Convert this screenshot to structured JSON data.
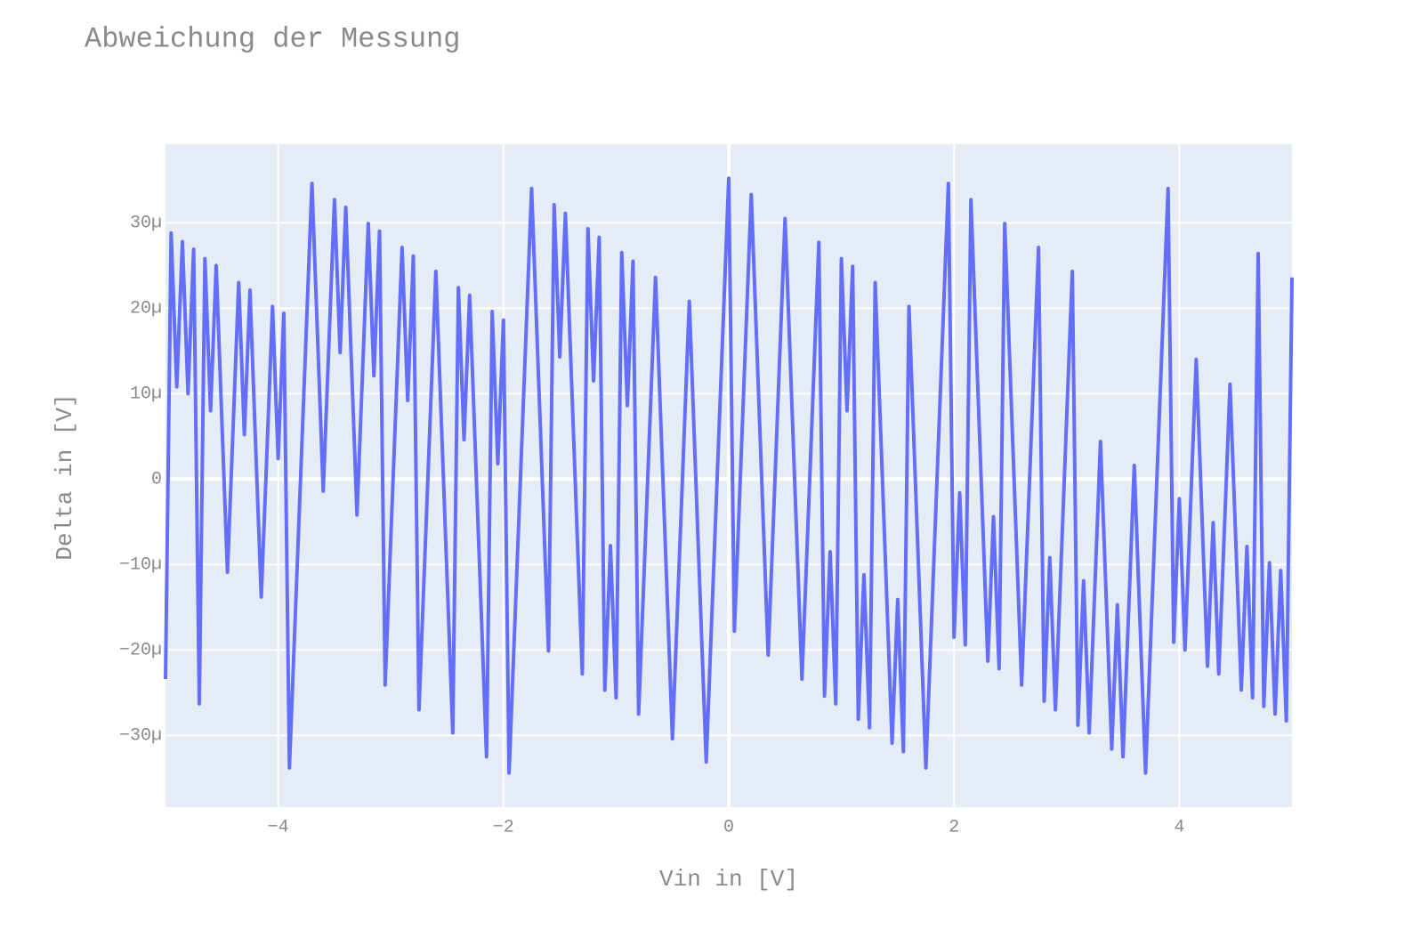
{
  "chart_data": {
    "type": "line",
    "title": "Abweichung der Messung",
    "xlabel": "Vin in [V]",
    "ylabel": "Delta in [V]",
    "x": [
      -5,
      -4.95,
      -4.9,
      -4.85,
      -4.8,
      -4.75,
      -4.7,
      -4.65,
      -4.6,
      -4.55,
      -4.5,
      -4.45,
      -4.4,
      -4.35,
      -4.3,
      -4.25,
      -4.2,
      -4.15,
      -4.1,
      -4.05,
      -4,
      -3.95,
      -3.9,
      -3.85,
      -3.8,
      -3.75,
      -3.7,
      -3.65,
      -3.6,
      -3.55,
      -3.5,
      -3.45,
      -3.4,
      -3.35,
      -3.3,
      -3.25,
      -3.2,
      -3.15,
      -3.1,
      -3.05,
      -3,
      -2.95,
      -2.9,
      -2.85,
      -2.8,
      -2.75,
      -2.7,
      -2.65,
      -2.6,
      -2.55,
      -2.5,
      -2.45,
      -2.4,
      -2.35,
      -2.3,
      -2.25,
      -2.2,
      -2.15,
      -2.1,
      -2.05,
      -2,
      -1.95,
      -1.9,
      -1.85,
      -1.8,
      -1.75,
      -1.7,
      -1.65,
      -1.6,
      -1.55,
      -1.5,
      -1.45,
      -1.4,
      -1.35,
      -1.3,
      -1.25,
      -1.2,
      -1.15,
      -1.1,
      -1.05,
      -1,
      -0.95,
      -0.9,
      -0.85,
      -0.8,
      -0.75,
      -0.7,
      -0.65,
      -0.6,
      -0.55,
      -0.5,
      -0.45,
      -0.4,
      -0.35,
      -0.3,
      -0.25,
      -0.2,
      -0.15,
      -0.1,
      -0.05,
      0,
      0.05,
      0.1,
      0.15,
      0.2,
      0.25,
      0.3,
      0.35,
      0.4,
      0.45,
      0.5,
      0.55,
      0.6,
      0.65,
      0.7,
      0.75,
      0.8,
      0.85,
      0.9,
      0.95,
      1,
      1.05,
      1.1,
      1.15,
      1.2,
      1.25,
      1.3,
      1.35,
      1.4,
      1.45,
      1.5,
      1.55,
      1.6,
      1.65,
      1.7,
      1.75,
      1.8,
      1.85,
      1.9,
      1.95,
      2,
      2.05,
      2.1,
      2.15,
      2.2,
      2.25,
      2.3,
      2.35,
      2.4,
      2.45,
      2.5,
      2.55,
      2.6,
      2.65,
      2.7,
      2.75,
      2.8,
      2.85,
      2.9,
      2.95,
      3,
      3.05,
      3.1,
      3.15,
      3.2,
      3.25,
      3.3,
      3.35,
      3.4,
      3.45,
      3.5,
      3.55,
      3.6,
      3.65,
      3.7,
      3.75,
      3.8,
      3.85,
      3.9,
      3.95,
      4,
      4.05,
      4.1,
      4.15,
      4.2,
      4.25,
      4.3,
      4.35,
      4.4,
      4.45,
      4.5,
      4.55,
      4.6,
      4.65,
      4.7,
      4.75,
      4.8,
      4.85,
      4.9,
      4.95,
      5
    ],
    "series": [
      {
        "color": "#636efa",
        "values": [
          -2.34e-05,
          2.88e-05,
          1.08e-05,
          2.78e-05,
          1e-05,
          2.69e-05,
          -2.63e-05,
          2.58e-05,
          8e-06,
          2.5e-05,
          7e-06,
          -1.09e-05,
          6e-06,
          2.3e-05,
          5.2e-06,
          2.21e-05,
          4e-06,
          -1.38e-05,
          3e-06,
          2.02e-05,
          2.4e-06,
          1.94e-05,
          -3.38e-05,
          -1.67e-05,
          4e-07,
          1.75e-05,
          3.46e-05,
          1.66e-05,
          -1.4e-06,
          1.56e-05,
          3.27e-05,
          1.48e-05,
          3.18e-05,
          1.38e-05,
          -4.2e-06,
          1.28e-05,
          2.99e-05,
          1.21e-05,
          2.9e-05,
          -2.41e-05,
          -6.9e-06,
          1.01e-05,
          2.71e-05,
          9.2e-06,
          2.61e-05,
          -2.7e-05,
          -9.9e-06,
          7.2e-06,
          2.43e-05,
          6.3e-06,
          -1.17e-05,
          -2.97e-05,
          2.24e-05,
          4.6e-06,
          2.15e-05,
          3.5e-06,
          -1.45e-05,
          -3.25e-05,
          1.96e-05,
          1.8e-06,
          1.86e-05,
          -3.44e-05,
          -1.73e-05,
          -2e-07,
          1.69e-05,
          3.4e-05,
          1.6e-05,
          -2e-06,
          -2.01e-05,
          3.21e-05,
          1.43e-05,
          3.11e-05,
          1.31e-05,
          -4.8e-06,
          -2.28e-05,
          2.93e-05,
          1.15e-05,
          2.83e-05,
          -2.47e-05,
          -7.8e-06,
          -2.56e-05,
          2.65e-05,
          8.6e-06,
          2.55e-05,
          -2.75e-05,
          -1.05e-05,
          6.6e-06,
          2.36e-05,
          5.6e-06,
          -1.24e-05,
          -3.04e-05,
          -1.33e-05,
          3.8e-06,
          2.08e-05,
          2.8e-06,
          -1.52e-05,
          -3.31e-05,
          -1.6e-05,
          1.1e-06,
          1.81e-05,
          3.52e-05,
          -1.78e-05,
          -8e-07,
          1.63e-05,
          3.33e-05,
          1.53e-05,
          -2.7e-06,
          -2.06e-05,
          -3.6e-06,
          1.35e-05,
          3.05e-05,
          1.25e-05,
          -5.5e-06,
          -2.34e-05,
          -6.4e-06,
          1.06e-05,
          2.77e-05,
          -2.54e-05,
          -8.5e-06,
          -2.63e-05,
          2.58e-05,
          8e-06,
          2.49e-05,
          -2.81e-05,
          -1.12e-05,
          -2.91e-05,
          2.3e-05,
          5.1e-06,
          -1.29e-05,
          -3.09e-05,
          -1.41e-05,
          -3.19e-05,
          2.02e-05,
          2.2e-06,
          -1.58e-05,
          -3.38e-05,
          -1.67e-05,
          4e-07,
          1.75e-05,
          3.46e-05,
          -1.85e-05,
          -1.6e-06,
          -1.94e-05,
          3.27e-05,
          1.47e-05,
          -3.3e-06,
          -2.13e-05,
          -4.4e-06,
          -2.22e-05,
          2.99e-05,
          1.19e-05,
          -6.1e-06,
          -2.41e-05,
          -7.1e-06,
          1e-05,
          2.71e-05,
          -2.6e-05,
          -9.2e-06,
          -2.7e-05,
          -9.9e-06,
          7.2e-06,
          2.43e-05,
          -2.88e-05,
          -1.19e-05,
          -2.97e-05,
          -1.27e-05,
          4.4e-06,
          -1.36e-05,
          -3.16e-05,
          -1.47e-05,
          -3.25e-05,
          -1.55e-05,
          1.6e-06,
          -1.64e-05,
          -3.44e-05,
          -1.73e-05,
          -2e-07,
          1.69e-05,
          3.4e-05,
          -1.91e-05,
          -2.3e-06,
          -2e-05,
          -3e-06,
          1.4e-05,
          -4e-06,
          -2.19e-05,
          -5.1e-06,
          -2.28e-05,
          -5.9e-06,
          1.11e-05,
          -6.8e-06,
          -2.47e-05,
          -7.9e-06,
          -2.56e-05,
          2.64e-05,
          -2.66e-05,
          -9.8e-06,
          -2.75e-05,
          -1.07e-05,
          -2.83e-05,
          2.36e-05
        ]
      }
    ],
    "xlim": [
      -5,
      5
    ],
    "xticks": [
      {
        "value": -4,
        "label": "−4"
      },
      {
        "value": -2,
        "label": "−2"
      },
      0,
      2,
      4
    ],
    "ylim": [
      -3.84e-05,
      3.92e-05
    ],
    "yticks": [
      {
        "value": -3e-05,
        "label": "−30µ"
      },
      {
        "value": -2e-05,
        "label": "−20µ"
      },
      {
        "value": -1e-05,
        "label": "−10µ"
      },
      0,
      {
        "value": 1e-05,
        "label": "10µ"
      },
      {
        "value": 2e-05,
        "label": "20µ"
      },
      {
        "value": 3e-05,
        "label": "30µ"
      }
    ],
    "grid": true,
    "zeroline": true
  }
}
